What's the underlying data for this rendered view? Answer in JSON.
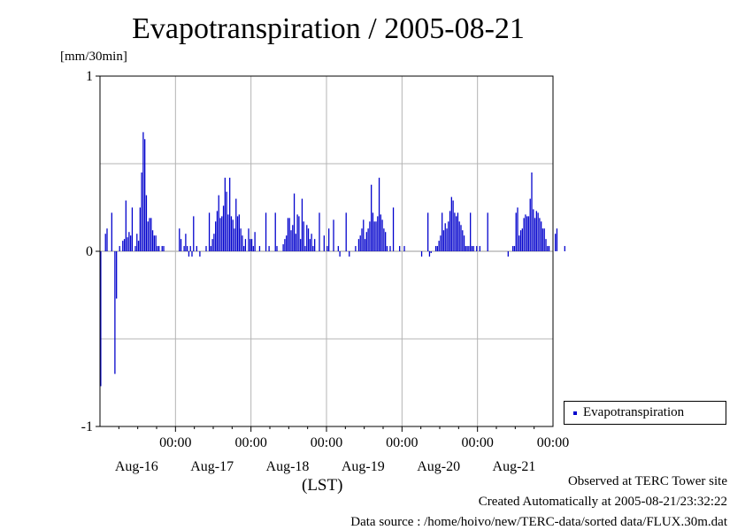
{
  "title": "Evapotranspiration / 2005-08-21",
  "unit_label": "[mm/30min]",
  "legend_label": "Evapotranspiration",
  "time_zone_label": "(LST)",
  "footer": {
    "line1": "Observed at TERC Tower site",
    "line2": "Created Automatically at 2005-08-21/23:32:22",
    "line3": "Data source : /home/hoivo/new/TERC-data/sorted  data/FLUX.30m.dat"
  },
  "colors": {
    "bar": "#0000cc",
    "grid": "#b4b4b4"
  },
  "chart_data": {
    "type": "bar",
    "title": "Evapotranspiration / 2005-08-21",
    "ylabel": "[mm/30min]",
    "ylim": [
      -1,
      1
    ],
    "yticks": [
      "1",
      "0",
      "-1"
    ],
    "xlim_days": [
      0,
      6
    ],
    "xticks": [
      {
        "time": "00:00",
        "date": "Aug-16"
      },
      {
        "time": "00:00",
        "date": "Aug-17"
      },
      {
        "time": "00:00",
        "date": "Aug-18"
      },
      {
        "time": "00:00",
        "date": "Aug-19"
      },
      {
        "time": "00:00",
        "date": "Aug-20"
      },
      {
        "time": "00:00",
        "date": "Aug-21"
      }
    ],
    "series": [
      {
        "name": "Evapotranspiration",
        "start": "2005-08-15 00:00",
        "interval_minutes": 30,
        "values": [
          -0.77,
          0,
          0,
          0.1,
          0.13,
          0,
          0,
          0.22,
          0,
          -0.7,
          -0.27,
          0,
          0.03,
          0,
          0.06,
          0.07,
          0.29,
          0.08,
          0.11,
          0.09,
          0.25,
          0,
          0.03,
          0.1,
          0.06,
          0.25,
          0.45,
          0.68,
          0.64,
          0.32,
          0.17,
          0.19,
          0.19,
          0.12,
          0.09,
          0.09,
          0.03,
          0.03,
          0,
          0.03,
          0.03,
          0,
          0,
          0,
          0,
          0,
          0,
          0,
          0,
          0,
          0.13,
          0.07,
          0,
          0.03,
          0.1,
          0.03,
          -0.03,
          0.03,
          -0.03,
          0.2,
          0,
          0.03,
          0,
          -0.03,
          0,
          0,
          0,
          0.03,
          0,
          0.22,
          0.03,
          0.07,
          0.1,
          0.17,
          0.23,
          0.32,
          0.19,
          0.2,
          0.26,
          0.42,
          0.34,
          0.21,
          0.42,
          0.2,
          0.18,
          0.13,
          0.3,
          0.2,
          0.21,
          0.13,
          0.09,
          0.03,
          0.07,
          0,
          0.13,
          0.07,
          0.07,
          0.03,
          0.11,
          0,
          0,
          0.03,
          0,
          0,
          0,
          0.22,
          0,
          0.03,
          0,
          0,
          0,
          0.22,
          0.03,
          0,
          0,
          0,
          0.04,
          0.07,
          0.09,
          0.19,
          0.19,
          0.12,
          0.15,
          0.33,
          0.1,
          0.21,
          0.2,
          0.07,
          0.3,
          0.17,
          0.03,
          0.15,
          0.13,
          0.07,
          0.1,
          0.03,
          0.07,
          0,
          0,
          0.22,
          0,
          0,
          0.09,
          0,
          0.03,
          0.13,
          0,
          0,
          0.18,
          0,
          0,
          0.03,
          -0.03,
          0,
          0,
          0,
          0.22,
          0,
          -0.03,
          0,
          0,
          0,
          0.03,
          0,
          0.07,
          0.09,
          0.13,
          0.18,
          0.07,
          0.11,
          0.13,
          0.17,
          0.38,
          0.22,
          0.17,
          0.17,
          0.2,
          0.42,
          0.21,
          0.18,
          0.13,
          0.11,
          0.03,
          0,
          0.03,
          0,
          0.25,
          0,
          0,
          0,
          0.03,
          0,
          0,
          0.03,
          0,
          0,
          0,
          0,
          0,
          0,
          0,
          0,
          0,
          0,
          -0.03,
          0,
          0,
          0,
          0.22,
          -0.03,
          -0.01,
          0,
          0,
          0.03,
          0.03,
          0.06,
          0.09,
          0.22,
          0.12,
          0.16,
          0.13,
          0.17,
          0.23,
          0.31,
          0.29,
          0.22,
          0.2,
          0.22,
          0.17,
          0.15,
          0.12,
          0.09,
          0.03,
          0.03,
          0.03,
          0.22,
          0.03,
          0.03,
          0,
          0.03,
          0,
          0.03,
          0,
          0,
          0,
          0,
          0.22,
          0,
          0,
          0,
          0,
          0,
          0,
          0,
          0,
          0,
          0,
          0,
          0,
          -0.03,
          0,
          0,
          0.03,
          0.03,
          0.22,
          0.25,
          0.09,
          0.12,
          0.13,
          0.19,
          0.21,
          0.2,
          0.2,
          0.3,
          0.45,
          0.24,
          0.19,
          0.23,
          0.22,
          0.19,
          0.17,
          0.13,
          0.13,
          0.07,
          0.03,
          0.03,
          0,
          0,
          0,
          0.1,
          0.13,
          0,
          0,
          0,
          0,
          0.03
        ]
      }
    ],
    "grid": true,
    "legend_position": "right"
  }
}
